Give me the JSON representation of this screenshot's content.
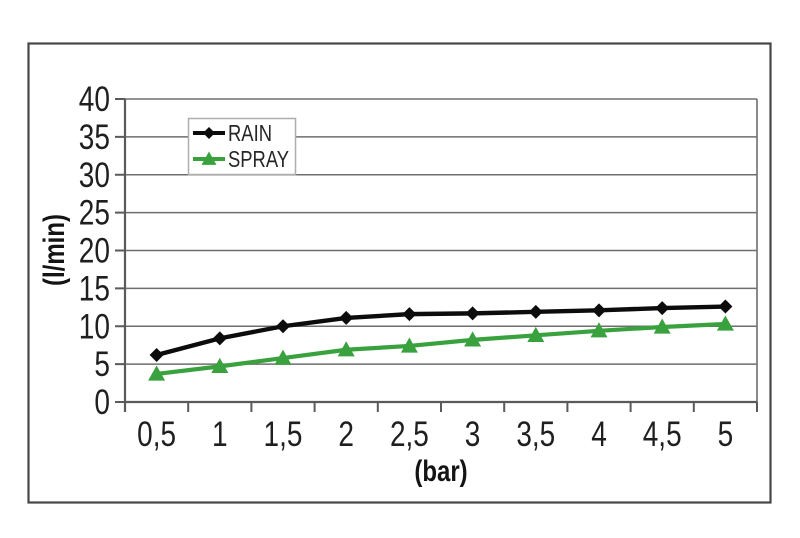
{
  "chart_data": {
    "type": "line",
    "categories": [
      "0,5",
      "1",
      "1,5",
      "2",
      "2,5",
      "3",
      "3,5",
      "4",
      "4,5",
      "5"
    ],
    "x_values": [
      0.5,
      1,
      1.5,
      2,
      2.5,
      3,
      3.5,
      4,
      4.5,
      5
    ],
    "series": [
      {
        "name": "RAIN",
        "values": [
          6.2,
          8.4,
          10.0,
          11.1,
          11.6,
          11.7,
          11.9,
          12.1,
          12.4,
          12.6
        ],
        "color": "#0c0c0c",
        "marker": "diamond"
      },
      {
        "name": "SPRAY",
        "values": [
          3.7,
          4.7,
          5.8,
          6.9,
          7.4,
          8.2,
          8.8,
          9.4,
          9.9,
          10.3
        ],
        "color": "#39a23e",
        "marker": "triangle"
      }
    ],
    "title": "",
    "xlabel": "(bar)",
    "ylabel": "(l/min)",
    "ylim": [
      0,
      40
    ],
    "ytick_step": 5,
    "y_ticks": [
      "0",
      "5",
      "10",
      "15",
      "20",
      "25",
      "30",
      "35",
      "40"
    ],
    "grid": "horizontal",
    "legend_position": "inside-top-left"
  },
  "colors": {
    "figure_border": "#474747",
    "gridline": "#6e6e6e",
    "axis": "#5a5a5a",
    "tick_text": "#1f1f1f",
    "legend_border": "#aeaeae",
    "background": "#ffffff"
  }
}
